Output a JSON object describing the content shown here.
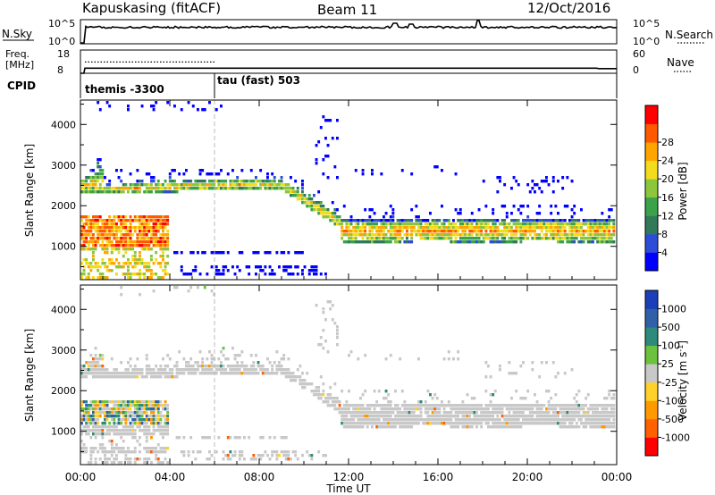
{
  "header": {
    "station": "Kapuskasing (fitACF)",
    "beam": "Beam 11",
    "date": "12/Oct/2016"
  },
  "colors": {
    "frame": "#000000",
    "gray_scatter": "#c8c8c8",
    "day_line": "#bbbbbb"
  },
  "noise_panel": {
    "left_label": "N.Sky",
    "right_label": "N.Search",
    "left_ticks": [
      "10^5",
      "10^0"
    ],
    "right_ticks": [
      "10^5",
      "10^0"
    ]
  },
  "freq_panel": {
    "left_label_line1": "Freq.",
    "left_label_line2": "[MHz]",
    "right_label": "Nave",
    "left_ticks": [
      "18",
      "8"
    ],
    "right_ticks": [
      "60",
      "0"
    ],
    "freq_min": 8,
    "freq_max": 18,
    "nave_min": 0,
    "nave_max": 60
  },
  "cpid_panel": {
    "label": "CPID",
    "modes": [
      {
        "name": "themis -3300",
        "start_hour": 0
      },
      {
        "name": "tau (fast) 503",
        "start_hour": 6
      }
    ]
  },
  "chart_data": [
    {
      "type": "heatmap",
      "name": "power",
      "ylabel": "Slant Range [km]",
      "ylim": [
        180,
        4600
      ],
      "yticks": [
        1000,
        2000,
        3000,
        4000
      ],
      "xlim": [
        0,
        24
      ],
      "colorbar": {
        "label": "Power [dB]",
        "ticks": [
          "4",
          "8",
          "12",
          "16",
          "20",
          "24",
          "28"
        ],
        "vmin": 0,
        "vmax": 32,
        "colors": [
          "#0000ff",
          "#2d4dd8",
          "#307a5a",
          "#3ba24a",
          "#8cc63c",
          "#f2dc1c",
          "#ffa500",
          "#ff5a00",
          "#ff0000"
        ]
      }
    },
    {
      "type": "heatmap",
      "name": "velocity",
      "ylabel": "Slant Range [km]",
      "ylim": [
        180,
        4600
      ],
      "yticks": [
        1000,
        2000,
        3000,
        4000
      ],
      "xlim": [
        0,
        24
      ],
      "xlabel": "Time UT",
      "xticks": [
        "00:00",
        "04:00",
        "08:00",
        "12:00",
        "16:00",
        "20:00",
        "00:00"
      ],
      "colorbar": {
        "label_main": "Velocity",
        "label_unit": "[m s",
        "label_exp": "-1",
        "label_close": "]",
        "ticks": [
          "1000",
          "500",
          "100",
          "25",
          "-25",
          "-100",
          "-500",
          "-1000"
        ],
        "colors": [
          "#1a3fb8",
          "#3060a8",
          "#2e8a7a",
          "#6cc23c",
          "#c8c8c8",
          "#ffd12a",
          "#ff9900",
          "#ff6000",
          "#ff0000"
        ]
      }
    }
  ]
}
